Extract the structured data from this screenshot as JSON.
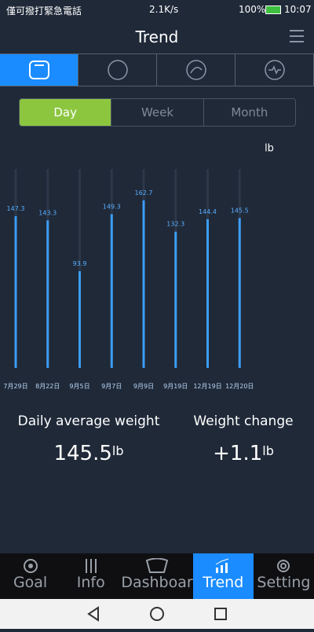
{
  "status_bar": {
    "carrier": "僅可撥打緊急電話",
    "speed": "2.1K/s",
    "battery": "100%",
    "time": "10:07"
  },
  "header": {
    "title": "Trend"
  },
  "segments": [
    "Day",
    "Week",
    "Month"
  ],
  "chart_data": {
    "type": "bar",
    "unit": "lb",
    "categories": [
      "7月29日",
      "8月22日",
      "9月5日",
      "9月7日",
      "9月9日",
      "9月19日",
      "12月19日",
      "12月20日"
    ],
    "values": [
      147.3,
      143.3,
      93.9,
      149.3,
      162.7,
      132.3,
      144.4,
      145.5
    ],
    "color": "#3d9df5",
    "ylim": [
      0,
      200
    ]
  },
  "stats": {
    "average_label": "Daily average weight",
    "average_value": "145.5",
    "average_unit": "lb",
    "change_label": "Weight change",
    "change_value": "+1.1",
    "change_unit": "lb"
  },
  "nav": [
    "Goal",
    "Info",
    "Dashboar",
    "Trend",
    "Setting"
  ]
}
